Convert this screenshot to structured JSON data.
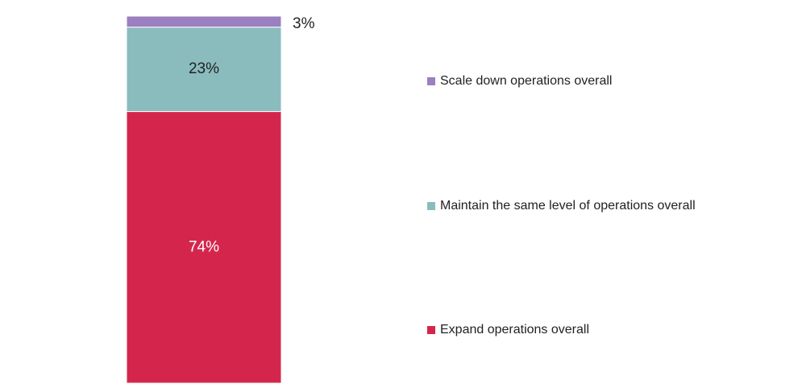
{
  "chart_data": {
    "type": "stacked_bar",
    "series": [
      {
        "name": "Expand operations overall",
        "color": "#d4264c",
        "values": [
          74
        ],
        "value_labels": [
          "74%"
        ]
      },
      {
        "name": "Maintain the same level of operations overall",
        "color": "#8abcbe",
        "values": [
          23
        ],
        "value_labels": [
          "23%"
        ]
      },
      {
        "name": "Scale down operations overall",
        "color": "#9b7fc0",
        "values": [
          3
        ],
        "value_labels": [
          "3%"
        ]
      }
    ]
  }
}
